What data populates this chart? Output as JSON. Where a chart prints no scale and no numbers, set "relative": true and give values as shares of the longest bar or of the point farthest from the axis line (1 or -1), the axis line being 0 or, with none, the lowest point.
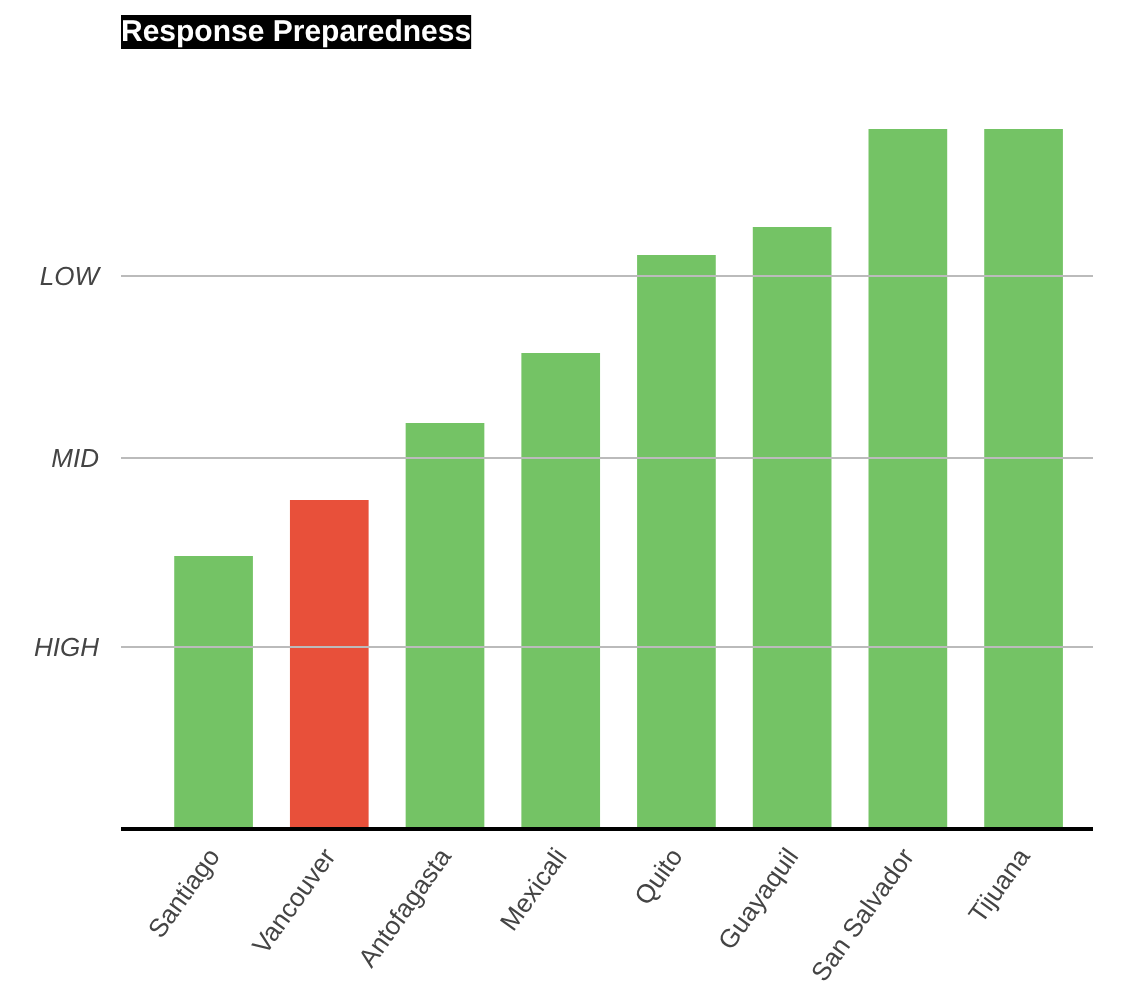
{
  "chart_data": {
    "type": "bar",
    "title": "Response Preparedness",
    "relative": true,
    "categories": [
      "Santiago",
      "Vancouver",
      "Antofagasta",
      "Mexicali",
      "Quito",
      "Guayaquil",
      "San Salvador",
      "Tijuana"
    ],
    "values": [
      0.39,
      0.47,
      0.58,
      0.68,
      0.82,
      0.86,
      1,
      1
    ],
    "colors": [
      "#74c365",
      "#e8503a",
      "#74c365",
      "#74c365",
      "#74c365",
      "#74c365",
      "#74c365",
      "#74c365"
    ],
    "ref_lines": [
      {
        "axis": "y",
        "value": 0.26,
        "label": "HIGH",
        "color": "#bbbbbb"
      },
      {
        "axis": "y",
        "value": 0.53,
        "label": "MID",
        "color": "#bbbbbb"
      },
      {
        "axis": "y",
        "value": 0.79,
        "label": "LOW",
        "color": "#bbbbbb"
      }
    ]
  }
}
